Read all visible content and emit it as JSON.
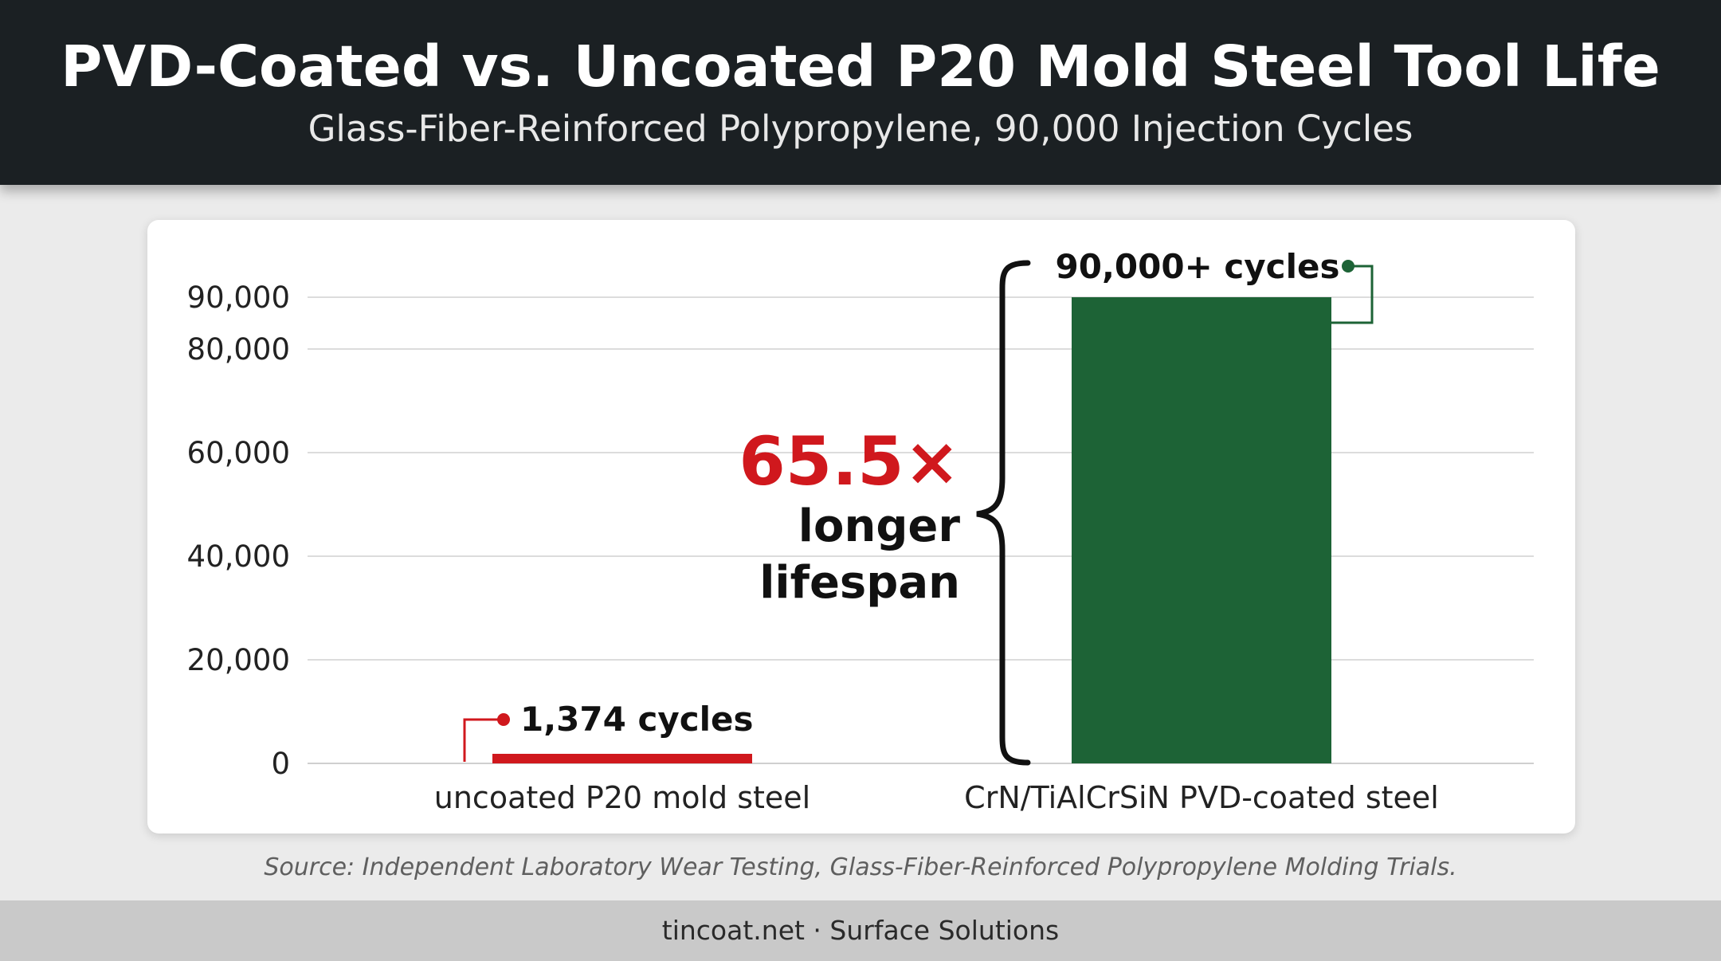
{
  "header": {
    "title": "PVD-Coated vs. Uncoated P20 Mold Steel Tool Life",
    "subtitle": "Glass-Fiber-Reinforced Polypropylene, 90,000 Injection Cycles"
  },
  "chart_data": {
    "type": "bar",
    "categories": [
      "uncoated P20 mold steel",
      "CrN/TiAlCrSiN PVD-coated steel"
    ],
    "values": [
      1374,
      90000
    ],
    "value_labels": [
      "1,374 cycles",
      "90,000+ cycles"
    ],
    "bar_colors": [
      "#d0181d",
      "#1d6336"
    ],
    "yticks": [
      0,
      20000,
      40000,
      60000,
      80000,
      90000
    ],
    "ytick_labels": [
      "0",
      "20,000",
      "40,000",
      "60,000",
      "80,000",
      "90,000"
    ],
    "ylim": [
      0,
      90000
    ],
    "grid": true,
    "annotation": {
      "multiplier": "65.5×",
      "line1": "longer",
      "line2": "lifespan",
      "multiplier_color": "#d0181d"
    }
  },
  "source": "Source: Independent Laboratory Wear Testing, Glass-Fiber-Reinforced Polypropylene Molding Trials.",
  "footer": {
    "text": "tincoat.net · Surface Solutions"
  }
}
